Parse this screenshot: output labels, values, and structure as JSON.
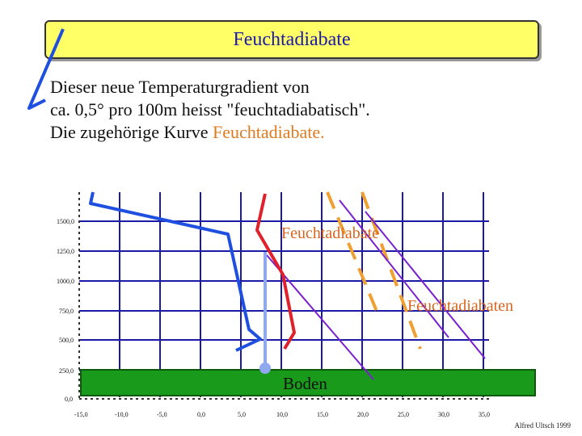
{
  "slide": {
    "title": "Feuchtadiabate",
    "intro_line1": "Dieser neue Temperaturgradient von",
    "intro_line2": "ca. 0,5° pro 100m heisst \"feuchtadiabatisch\".",
    "intro_line3_prefix": "Die zugehörige Kurve ",
    "intro_line3_accent": "Feuchtadiabate.",
    "credit": "Alfred Ultsch 1999"
  },
  "diagram": {
    "label_feuchtadiabate": "Feuchtadiabate",
    "label_feuchtadiabaten": "Feuchtadiabaten",
    "label_boden": "Boden",
    "y_tick_labels": [
      "1500,0",
      "1250,0",
      "1000,0",
      "750,0",
      "500,0",
      "250,0",
      "0,0"
    ],
    "x_tick_labels": [
      "-15,0",
      "-10,0",
      "-5,0",
      "0,0",
      "5,0",
      "10,0",
      "15,0",
      "20,0",
      "25,0",
      "30,0",
      "35,0"
    ],
    "colors": {
      "grid": "#1a1aa6",
      "ground": "#1a9a1a",
      "environment_curve": "#1f4fe0",
      "red_curve": "#e0202a",
      "purple_lines": "#7a1fd0",
      "dashed_lines": "#f0a030",
      "parcel": "#8fa8f0",
      "label_orange": "#d8641e"
    }
  }
}
